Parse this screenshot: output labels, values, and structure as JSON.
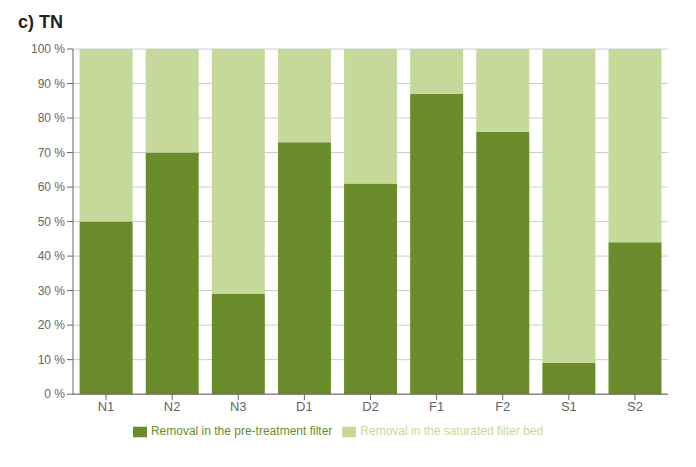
{
  "chart_data": {
    "type": "bar",
    "title": "c) TN",
    "categories": [
      "N1",
      "N2",
      "N3",
      "D1",
      "D2",
      "F1",
      "F2",
      "S1",
      "S2"
    ],
    "series": [
      {
        "name": "Removal in the pre-treatment filter",
        "color": "#6b8c2a",
        "values": [
          50,
          70,
          29,
          73,
          61,
          87,
          76,
          9,
          44
        ]
      },
      {
        "name": "Removal in the saturated filter bed",
        "color": "#c5d99a",
        "values": [
          50,
          30,
          71,
          27,
          39,
          13,
          24,
          91,
          56
        ]
      }
    ],
    "stacked": true,
    "ylim": [
      0,
      100
    ],
    "yticks": [
      {
        "value": 0,
        "label": "0 %"
      },
      {
        "value": 10,
        "label": "10 %"
      },
      {
        "value": 20,
        "label": "20 %"
      },
      {
        "value": 30,
        "label": "30 %"
      },
      {
        "value": 40,
        "label": "40 %"
      },
      {
        "value": 50,
        "label": "50 %"
      },
      {
        "value": 60,
        "label": "60 %"
      },
      {
        "value": 70,
        "label": "70 %"
      },
      {
        "value": 80,
        "label": "80 %"
      },
      {
        "value": 90,
        "label": "90 %"
      },
      {
        "value": 100,
        "label": "100 %"
      }
    ],
    "grid": true,
    "legend": "bottom"
  }
}
